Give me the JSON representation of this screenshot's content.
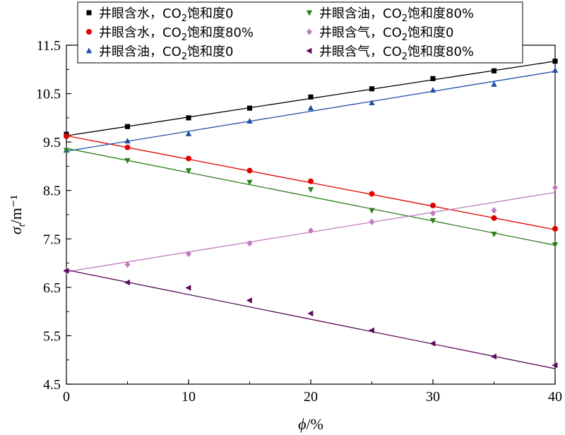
{
  "chart_data": {
    "type": "scatter",
    "xlabel": "ϕ/%",
    "ylabel": "σ_t/m⁻¹",
    "xlim": [
      0,
      40
    ],
    "ylim": [
      4.5,
      11.5
    ],
    "x_ticks": [
      0,
      10,
      20,
      30,
      40
    ],
    "y_ticks": [
      4.5,
      5.5,
      6.5,
      7.5,
      8.5,
      9.5,
      10.5,
      11.5
    ],
    "x_tick_labels": [
      "0",
      "10",
      "20",
      "30",
      "40"
    ],
    "y_tick_labels": [
      "4.5",
      "5.5",
      "6.5",
      "7.5",
      "8.5",
      "9.5",
      "10.5",
      "11.5"
    ],
    "grid": false,
    "legend_position": "top",
    "x": [
      0,
      5,
      10,
      15,
      20,
      25,
      30,
      35,
      40
    ],
    "series": [
      {
        "name": "井眼含水，CO₂饱和度0",
        "name_prefix": "井眼含水，CO",
        "name_sub": "2",
        "name_suffix": "饱和度0",
        "color": "#000000",
        "marker": "square",
        "values": [
          9.66,
          9.82,
          10.0,
          10.2,
          10.43,
          10.6,
          10.81,
          10.97,
          11.17
        ],
        "fit": [
          9.63,
          11.17
        ]
      },
      {
        "name": "井眼含水，CO₂饱和度80%",
        "name_prefix": "井眼含水，CO",
        "name_sub": "2",
        "name_suffix": "饱和度80%",
        "color": "#e00000",
        "marker": "circle",
        "values": [
          9.62,
          9.39,
          9.16,
          8.91,
          8.69,
          8.43,
          8.19,
          7.93,
          7.71
        ],
        "fit": [
          9.63,
          7.69
        ]
      },
      {
        "name": "井眼含油，CO₂饱和度0",
        "name_prefix": "井眼含油，CO",
        "name_sub": "2",
        "name_suffix": "饱和度0",
        "color": "#1f4fa6",
        "marker": "triangle-up",
        "values": [
          9.33,
          9.52,
          9.67,
          9.93,
          10.2,
          10.31,
          10.57,
          10.69,
          10.98
        ],
        "fit": [
          9.31,
          10.96
        ]
      },
      {
        "name": "井眼含油，CO₂饱和度80%",
        "name_prefix": "井眼含油，CO",
        "name_sub": "2",
        "name_suffix": "饱和度80%",
        "color": "#2e7d1e",
        "marker": "triangle-down",
        "values": [
          9.33,
          9.12,
          8.91,
          8.67,
          8.52,
          8.09,
          7.88,
          7.6,
          7.38
        ],
        "fit": [
          9.37,
          7.37
        ]
      },
      {
        "name": "井眼含气，CO₂饱和度0",
        "name_prefix": "井眼含气，CO",
        "name_sub": "2",
        "name_suffix": "饱和度0",
        "color": "#c07ac0",
        "marker": "diamond",
        "values": [
          6.84,
          6.97,
          7.19,
          7.41,
          7.67,
          7.85,
          8.03,
          8.09,
          8.56
        ],
        "fit": [
          6.82,
          8.46
        ]
      },
      {
        "name": "井眼含气，CO₂饱和度80%",
        "name_prefix": "井眼含气，CO",
        "name_sub": "2",
        "name_suffix": "饱和度80%",
        "color": "#5a0a5a",
        "marker": "triangle-left",
        "values": [
          6.84,
          6.6,
          6.49,
          6.23,
          5.96,
          5.61,
          5.34,
          5.07,
          4.89
        ],
        "fit": [
          6.86,
          4.82
        ]
      }
    ]
  }
}
